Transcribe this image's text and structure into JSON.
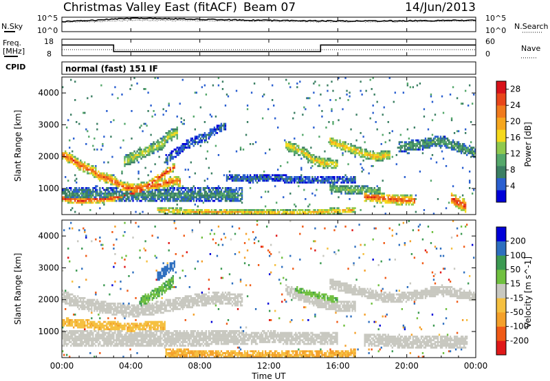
{
  "header": {
    "station": "Christmas Valley East (fitACF)",
    "beam": "Beam 07",
    "date": "14/Jun/2013"
  },
  "meta_panels": {
    "nsky_label": "N.Sky",
    "nsearch_label": "N.Search",
    "freq_label_1": "Freq.",
    "freq_label_2": "[MHz]",
    "nave_label": "Nave",
    "cpid_label": "CPID",
    "cpid_value": "normal (fast) 151 IF",
    "noise_ticks": [
      "10^5",
      "10^0"
    ],
    "freq_ticks": [
      "18",
      "8"
    ],
    "nave_ticks": [
      "60",
      "0"
    ]
  },
  "x_axis": {
    "title": "Time UT",
    "ticks": [
      "00:00",
      "04:00",
      "08:00",
      "12:00",
      "16:00",
      "20:00",
      "00:00"
    ]
  },
  "chart_data": [
    {
      "type": "line",
      "name": "noise",
      "x": [
        0,
        2,
        4,
        6,
        8,
        10,
        12,
        14,
        16,
        18,
        20,
        22,
        24
      ],
      "series": [
        {
          "name": "N.Sky",
          "values": [
            3000,
            8000,
            40000,
            30000,
            20000,
            12000,
            8000,
            6000,
            5000,
            5000,
            6000,
            7000,
            9000
          ]
        },
        {
          "name": "N.Search",
          "values": [
            1500,
            3000,
            8000,
            7000,
            6000,
            5000,
            4000,
            3000,
            2500,
            2500,
            3000,
            3500,
            4000
          ]
        }
      ],
      "ylim": [
        1,
        100000
      ],
      "yscale": "log"
    },
    {
      "type": "line",
      "name": "freq_nave",
      "x": [
        0,
        3,
        3,
        15,
        15,
        24
      ],
      "series": [
        {
          "name": "Freq. [MHz]",
          "values": [
            14.5,
            14.5,
            10.5,
            10.5,
            14.5,
            14.5
          ]
        },
        {
          "name": "Nave",
          "values": [
            22,
            22,
            22,
            22,
            22,
            22
          ]
        }
      ],
      "ylim_freq": [
        8,
        18
      ],
      "ylim_nave": [
        0,
        60
      ]
    },
    {
      "type": "heatmap",
      "name": "power",
      "xlabel": "Time UT",
      "ylabel": "Slant Range [km]",
      "xlim": [
        0,
        24
      ],
      "ylim": [
        180,
        4500
      ],
      "yticks": [
        1000,
        2000,
        3000,
        4000
      ],
      "colorbar": {
        "label": "Power [dB]",
        "ticks": [
          4,
          8,
          12,
          16,
          20,
          24,
          28
        ],
        "range": [
          0,
          30
        ],
        "colors": [
          "#0000d8",
          "#2a5fd0",
          "#3b7f63",
          "#55a86b",
          "#8fc94e",
          "#f5d91c",
          "#f6a71f",
          "#f07a1d",
          "#e8461a",
          "#d8121a"
        ]
      },
      "echo_bands": [
        {
          "t": [
            0,
            0.5,
            1,
            1.8,
            2.2,
            3,
            3.5,
            4.2,
            5.5,
            6.6,
            6.9
          ],
          "r": [
            2050,
            1950,
            1750,
            1550,
            1400,
            1250,
            1050,
            1000,
            1100,
            1250,
            1200
          ],
          "w": 160,
          "p": 25
        },
        {
          "t": [
            0,
            1,
            2,
            3,
            4.5,
            5.5,
            6.3,
            6.6
          ],
          "r": [
            700,
            620,
            650,
            700,
            900,
            1300,
            1600,
            1700
          ],
          "w": 120,
          "p": 27
        },
        {
          "t": [
            3.6,
            4.2,
            5,
            5.8,
            6.2,
            6.7
          ],
          "r": [
            1850,
            2000,
            2200,
            2400,
            2650,
            2750
          ],
          "w": 180,
          "p": 16
        },
        {
          "t": [
            6,
            6.8,
            7.3,
            8.2,
            9.5
          ],
          "r": [
            1900,
            2200,
            2400,
            2600,
            3000
          ],
          "w": 140,
          "p": 6
        },
        {
          "t": [
            0,
            2.5,
            4.5,
            6.5,
            9,
            10.5
          ],
          "r": [
            800,
            800,
            800,
            800,
            800,
            800
          ],
          "w": 220,
          "p": 9
        },
        {
          "t": [
            5.5,
            7,
            9,
            11,
            13,
            15,
            16,
            17
          ],
          "r": [
            320,
            280,
            260,
            250,
            240,
            260,
            300,
            340
          ],
          "w": 100,
          "p": 20
        },
        {
          "t": [
            13,
            14,
            14.6,
            15.2,
            16
          ],
          "r": [
            2350,
            2150,
            1900,
            1800,
            1750
          ],
          "w": 160,
          "p": 18
        },
        {
          "t": [
            15.5,
            16.5,
            17.5,
            18.2,
            19
          ],
          "r": [
            2500,
            2300,
            2100,
            2000,
            2050
          ],
          "w": 150,
          "p": 19
        },
        {
          "t": [
            17.5,
            18.5,
            19.5,
            20.5
          ],
          "r": [
            750,
            700,
            650,
            620
          ],
          "w": 160,
          "p": 26
        },
        {
          "t": [
            15.5,
            17,
            18.5
          ],
          "r": [
            1000,
            950,
            920
          ],
          "w": 140,
          "p": 13
        },
        {
          "t": [
            19.5,
            21,
            22,
            23,
            24
          ],
          "r": [
            2300,
            2400,
            2500,
            2300,
            2100
          ],
          "w": 170,
          "p": 10
        },
        {
          "t": [
            22.6,
            23,
            23.4
          ],
          "r": [
            700,
            550,
            450
          ],
          "w": 200,
          "p": 27
        },
        {
          "t": [
            9.5,
            11,
            12,
            13,
            15,
            17
          ],
          "r": [
            1350,
            1300,
            1350,
            1300,
            1250,
            1300
          ],
          "w": 120,
          "p": 6
        }
      ]
    },
    {
      "type": "heatmap",
      "name": "velocity",
      "xlabel": "Time UT",
      "ylabel": "Slant Range [km]",
      "xlim": [
        0,
        24
      ],
      "ylim": [
        180,
        4500
      ],
      "yticks": [
        1000,
        2000,
        3000,
        4000
      ],
      "colorbar": {
        "label": "Velocity [m s^-1]",
        "ticks": [
          200,
          100,
          50,
          15,
          -15,
          -50,
          -100,
          -200
        ],
        "range": [
          -250,
          250
        ],
        "colors": [
          "#e01818",
          "#f05a16",
          "#f4a02a",
          "#f5c040",
          "#c8c8c0",
          "#70c040",
          "#3c9a52",
          "#2e6fbf",
          "#0000d8"
        ]
      },
      "echo_bands": [
        {
          "t": [
            0,
            1,
            2,
            3,
            4,
            5,
            6,
            7,
            8,
            9,
            10.5
          ],
          "r": [
            2100,
            1900,
            1800,
            1700,
            1650,
            1700,
            1800,
            1900,
            2000,
            2050,
            2000
          ],
          "w": 200,
          "v": 0
        },
        {
          "t": [
            0,
            2,
            4,
            6,
            8,
            10.5
          ],
          "r": [
            800,
            780,
            760,
            780,
            800,
            820
          ],
          "w": 250,
          "v": 0
        },
        {
          "t": [
            4.5,
            5.2,
            6,
            6.5
          ],
          "r": [
            1900,
            2100,
            2400,
            2600
          ],
          "w": 180,
          "v": 45
        },
        {
          "t": [
            5.5,
            6,
            6.3,
            6.6
          ],
          "r": [
            2700,
            2900,
            3000,
            3100
          ],
          "w": 160,
          "v": 180
        },
        {
          "t": [
            6,
            8,
            10,
            12,
            14,
            16,
            17
          ],
          "r": [
            330,
            300,
            280,
            260,
            260,
            280,
            320
          ],
          "w": 130,
          "v": -50
        },
        {
          "t": [
            13,
            14,
            15,
            16,
            17
          ],
          "r": [
            2300,
            2100,
            1900,
            1800,
            1800
          ],
          "w": 170,
          "v": 0
        },
        {
          "t": [
            15.5,
            17,
            18.5,
            19.5,
            21,
            22,
            23,
            24
          ],
          "r": [
            2500,
            2300,
            2100,
            2050,
            2200,
            2300,
            2200,
            2100
          ],
          "w": 160,
          "v": 0
        },
        {
          "t": [
            13.5,
            15,
            16
          ],
          "r": [
            2300,
            2100,
            1950
          ],
          "w": 120,
          "v": 40
        },
        {
          "t": [
            17.5,
            19,
            20.5,
            22,
            23.5
          ],
          "r": [
            750,
            700,
            650,
            650,
            700
          ],
          "w": 200,
          "v": 0
        },
        {
          "t": [
            10.5,
            12,
            14,
            16
          ],
          "r": [
            800,
            820,
            800,
            780
          ],
          "w": 200,
          "v": 0
        },
        {
          "t": [
            0,
            2,
            4,
            6
          ],
          "r": [
            1300,
            1200,
            1150,
            1200
          ],
          "w": 140,
          "v": -40
        }
      ]
    }
  ]
}
